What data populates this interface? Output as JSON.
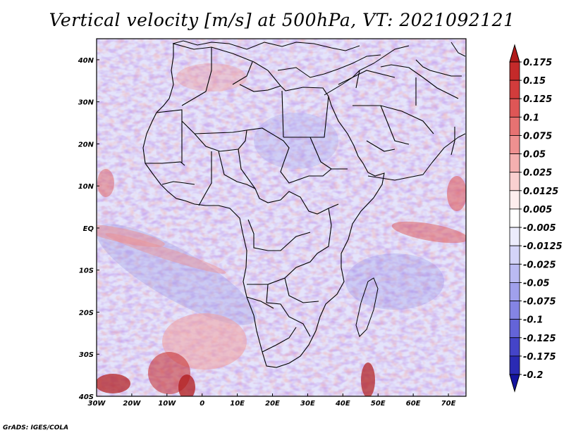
{
  "title": "Vertical velocity [m/s] at 500hPa, VT: 2021092121",
  "footer": "GrADS: IGES/COLA",
  "map": {
    "lon_range": [
      -30,
      75
    ],
    "lat_range": [
      -40,
      45
    ],
    "lon_ticks": [
      {
        "value": -30,
        "label": "30W"
      },
      {
        "value": -20,
        "label": "20W"
      },
      {
        "value": -10,
        "label": "10W"
      },
      {
        "value": 0,
        "label": "0"
      },
      {
        "value": 10,
        "label": "10E"
      },
      {
        "value": 20,
        "label": "20E"
      },
      {
        "value": 30,
        "label": "30E"
      },
      {
        "value": 40,
        "label": "40E"
      },
      {
        "value": 50,
        "label": "50E"
      },
      {
        "value": 60,
        "label": "60E"
      },
      {
        "value": 70,
        "label": "70E"
      }
    ],
    "lat_ticks": [
      {
        "value": 40,
        "label": "40N"
      },
      {
        "value": 30,
        "label": "30N"
      },
      {
        "value": 20,
        "label": "20N"
      },
      {
        "value": 10,
        "label": "10N"
      },
      {
        "value": 0,
        "label": "EQ"
      },
      {
        "value": -10,
        "label": "10S"
      },
      {
        "value": -20,
        "label": "20S"
      },
      {
        "value": -30,
        "label": "30S"
      },
      {
        "value": -40,
        "label": "40S"
      }
    ]
  },
  "colorbar": {
    "levels": [
      "0.175",
      "0.15",
      "0.125",
      "0.1",
      "0.075",
      "0.05",
      "0.025",
      "0.0125",
      "0.005",
      "-0.005",
      "-0.0125",
      "-0.025",
      "-0.05",
      "-0.075",
      "-0.1",
      "-0.125",
      "-0.175",
      "-0.2"
    ],
    "colors": [
      "#b01a1a",
      "#c42a2a",
      "#d23c3c",
      "#de5656",
      "#e67272",
      "#ee9090",
      "#f4b0b0",
      "#f9d0d0",
      "#fdeeee",
      "#ffffff",
      "#ececfc",
      "#d4d4f8",
      "#babaf2",
      "#a0a0ec",
      "#8484e4",
      "#6464d8",
      "#4444c8",
      "#2a2ab4",
      "#1414a0"
    ]
  }
}
